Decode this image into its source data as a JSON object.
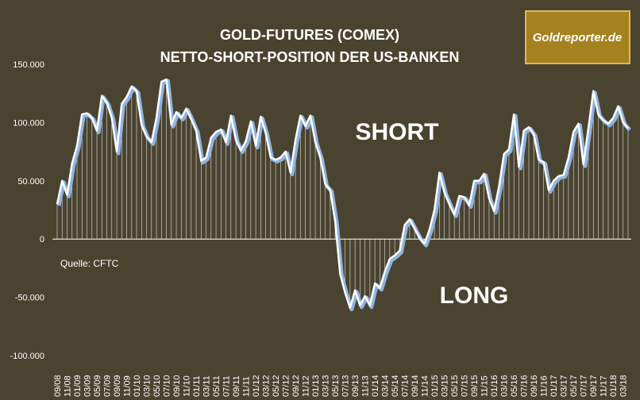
{
  "chart_data": {
    "type": "line",
    "title": [
      "GOLD-FUTURES (COMEX)",
      "NETTO-SHORT-POSITION DER US-BANKEN"
    ],
    "logo": "Goldreporter.de",
    "annotations": [
      "SHORT",
      "LONG",
      "Quelle: CFTC"
    ],
    "categories": [
      "09/08",
      null,
      "11/08",
      null,
      "01/09",
      null,
      "03/09",
      null,
      "05/09",
      null,
      "07/09",
      null,
      "09/09",
      null,
      "11/09",
      null,
      "01/10",
      null,
      "03/10",
      null,
      "05/10",
      null,
      "07/10",
      null,
      "09/10",
      null,
      "11/10",
      null,
      "01/11",
      null,
      "03/11",
      null,
      "05/11",
      null,
      "07/11",
      null,
      "09/11",
      null,
      "11/11",
      null,
      "01/12",
      null,
      "03/12",
      null,
      "05/12",
      null,
      "07/12",
      null,
      "09/12",
      null,
      "11/12",
      null,
      "01/13",
      null,
      "03/13",
      null,
      "05/13",
      null,
      "07/13",
      null,
      "09/13",
      null,
      "11/13",
      null,
      "01/14",
      null,
      "03/14",
      null,
      "05/14",
      null,
      "07/14",
      null,
      "09/14",
      null,
      "11/14",
      null,
      "01/15",
      null,
      "03/15",
      null,
      "05/15",
      null,
      "07/15",
      null,
      "09/15",
      null,
      "11/15",
      null,
      "01/16",
      null,
      "03/16",
      null,
      "05/16",
      null,
      "07/16",
      null,
      "09/16",
      null,
      "11/16",
      null,
      "01/17",
      null,
      "03/17",
      null,
      "05/17",
      null,
      "07/17",
      null,
      "09/17",
      null,
      "11/17",
      null,
      "01/18",
      null,
      "03/18",
      null
    ],
    "values": [
      30000,
      50000,
      38000,
      65000,
      80000,
      107000,
      108000,
      104000,
      93000,
      123000,
      117000,
      104000,
      75000,
      116000,
      122000,
      131000,
      127000,
      98000,
      88000,
      83000,
      104000,
      135000,
      137000,
      98000,
      109000,
      104000,
      112000,
      103000,
      93000,
      67000,
      70000,
      87000,
      92000,
      94000,
      83000,
      106000,
      85000,
      76000,
      84000,
      101000,
      80000,
      105000,
      91000,
      70000,
      68000,
      70000,
      75000,
      57000,
      85000,
      106000,
      97000,
      106000,
      83000,
      70000,
      47000,
      42000,
      15000,
      -30000,
      -46000,
      -59000,
      -44000,
      -57000,
      -49000,
      -57000,
      -38000,
      -42000,
      -28000,
      -17000,
      -14000,
      -10000,
      12000,
      17000,
      9000,
      1000,
      -4000,
      8000,
      25000,
      57000,
      40000,
      30000,
      21000,
      37000,
      36000,
      29000,
      50000,
      50000,
      56000,
      35000,
      24000,
      45000,
      73000,
      77000,
      107000,
      62000,
      93000,
      96000,
      90000,
      68000,
      66000,
      42000,
      50000,
      54000,
      55000,
      70000,
      92000,
      99000,
      64000,
      95000,
      127000,
      107000,
      102000,
      99000,
      104000,
      114000,
      100000,
      95000
    ],
    "color": "#ffffff",
    "shadow_color": "#8fb4e3",
    "ylim": [
      -100000,
      150000
    ],
    "yticks": [
      {
        "value": -100000,
        "label": "-100.000"
      },
      {
        "value": -50000,
        "label": "-50.000"
      },
      0,
      {
        "value": 50000,
        "label": "50.000"
      },
      {
        "value": 100000,
        "label": "100.000"
      },
      {
        "value": 150000,
        "label": "150.000"
      }
    ],
    "grid": false
  }
}
